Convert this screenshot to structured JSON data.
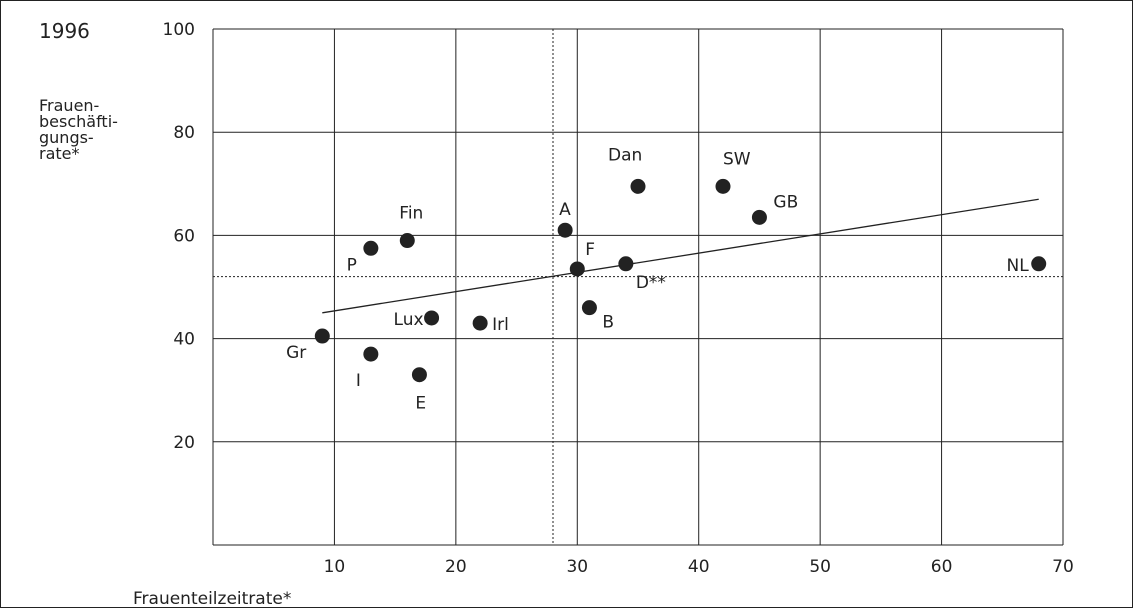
{
  "chart_data": {
    "type": "scatter",
    "year_label": "1996",
    "ylabel_lines": [
      "Frauen-",
      "beschäfti-",
      "gungs-",
      "rate*"
    ],
    "xlabel": "Frauenteilzeitrate*",
    "xlim": [
      0,
      70
    ],
    "ylim": [
      0,
      100
    ],
    "x_ticks": [
      10,
      20,
      30,
      40,
      50,
      60,
      70
    ],
    "y_ticks": [
      20,
      40,
      60,
      80,
      100
    ],
    "grid": true,
    "points": [
      {
        "label": "Gr",
        "x": 9,
        "y": 40.5
      },
      {
        "label": "I",
        "x": 13,
        "y": 37
      },
      {
        "label": "P",
        "x": 13,
        "y": 57.5
      },
      {
        "label": "Fin",
        "x": 16,
        "y": 59
      },
      {
        "label": "E",
        "x": 17,
        "y": 33
      },
      {
        "label": "Lux",
        "x": 18,
        "y": 44
      },
      {
        "label": "Irl",
        "x": 22,
        "y": 43
      },
      {
        "label": "A",
        "x": 29,
        "y": 61
      },
      {
        "label": "F",
        "x": 30,
        "y": 53.5
      },
      {
        "label": "B",
        "x": 31,
        "y": 46
      },
      {
        "label": "D**",
        "x": 34,
        "y": 54.5
      },
      {
        "label": "Dan",
        "x": 35,
        "y": 69.5
      },
      {
        "label": "SW",
        "x": 42,
        "y": 69.5
      },
      {
        "label": "GB",
        "x": 45,
        "y": 63.5
      },
      {
        "label": "NL",
        "x": 68,
        "y": 54.5
      }
    ],
    "trend_line": {
      "x1": 9,
      "y1": 45,
      "x2": 68,
      "y2": 67
    },
    "reference_lines": {
      "x": 28,
      "y": 52
    }
  }
}
